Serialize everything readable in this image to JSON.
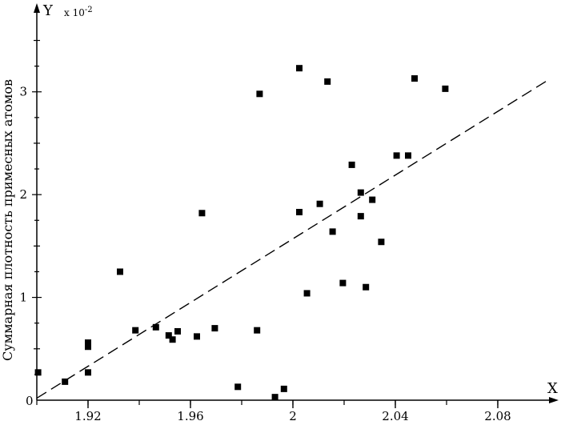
{
  "chart_data": {
    "type": "scatter",
    "title": "",
    "xlabel": "X",
    "ylabel": "Y",
    "y_multiplier": "x 10",
    "y_multiplier_exp": "-2",
    "side_label": "Суммарная плотность примесных атомов",
    "xlim": [
      1.9,
      2.1
    ],
    "ylim": [
      0,
      3.8
    ],
    "x_ticks": [
      1.92,
      1.96,
      2.0,
      2.04,
      2.08
    ],
    "x_tick_labels": [
      "1.92",
      "1.96",
      "2",
      "2.04",
      "2.08"
    ],
    "y_ticks": [
      1,
      2,
      3
    ],
    "y_tick_labels": [
      "1",
      "2",
      "3"
    ],
    "origin_label": "0",
    "grid": false,
    "fit_line": {
      "x": [
        1.9,
        2.1
      ],
      "y": [
        0.02,
        3.12
      ],
      "style": "dashed"
    },
    "series": [
      {
        "points": [
          {
            "x": 1.9005,
            "y": 0.27
          },
          {
            "x": 1.911,
            "y": 0.18
          },
          {
            "x": 1.92,
            "y": 0.56
          },
          {
            "x": 1.92,
            "y": 0.52
          },
          {
            "x": 1.92,
            "y": 0.27
          },
          {
            "x": 1.9325,
            "y": 1.25
          },
          {
            "x": 1.9385,
            "y": 0.68
          },
          {
            "x": 1.9465,
            "y": 0.71
          },
          {
            "x": 1.9515,
            "y": 0.63
          },
          {
            "x": 1.953,
            "y": 0.59
          },
          {
            "x": 1.955,
            "y": 0.67
          },
          {
            "x": 1.9625,
            "y": 0.62
          },
          {
            "x": 1.9645,
            "y": 1.82
          },
          {
            "x": 1.9695,
            "y": 0.7
          },
          {
            "x": 1.9785,
            "y": 0.13
          },
          {
            "x": 1.986,
            "y": 0.68
          },
          {
            "x": 1.987,
            "y": 2.98
          },
          {
            "x": 1.993,
            "y": 0.03
          },
          {
            "x": 1.9965,
            "y": 0.11
          },
          {
            "x": 2.0025,
            "y": 1.83
          },
          {
            "x": 2.0025,
            "y": 3.23
          },
          {
            "x": 2.0055,
            "y": 1.04
          },
          {
            "x": 2.0105,
            "y": 1.91
          },
          {
            "x": 2.0135,
            "y": 3.1
          },
          {
            "x": 2.0155,
            "y": 1.64
          },
          {
            "x": 2.0195,
            "y": 1.14
          },
          {
            "x": 2.023,
            "y": 2.29
          },
          {
            "x": 2.0265,
            "y": 2.02
          },
          {
            "x": 2.0265,
            "y": 1.79
          },
          {
            "x": 2.0285,
            "y": 1.1
          },
          {
            "x": 2.031,
            "y": 1.95
          },
          {
            "x": 2.0345,
            "y": 1.54
          },
          {
            "x": 2.0405,
            "y": 2.38
          },
          {
            "x": 2.045,
            "y": 2.38
          },
          {
            "x": 2.0475,
            "y": 3.13
          },
          {
            "x": 2.0595,
            "y": 3.03
          }
        ]
      }
    ]
  }
}
